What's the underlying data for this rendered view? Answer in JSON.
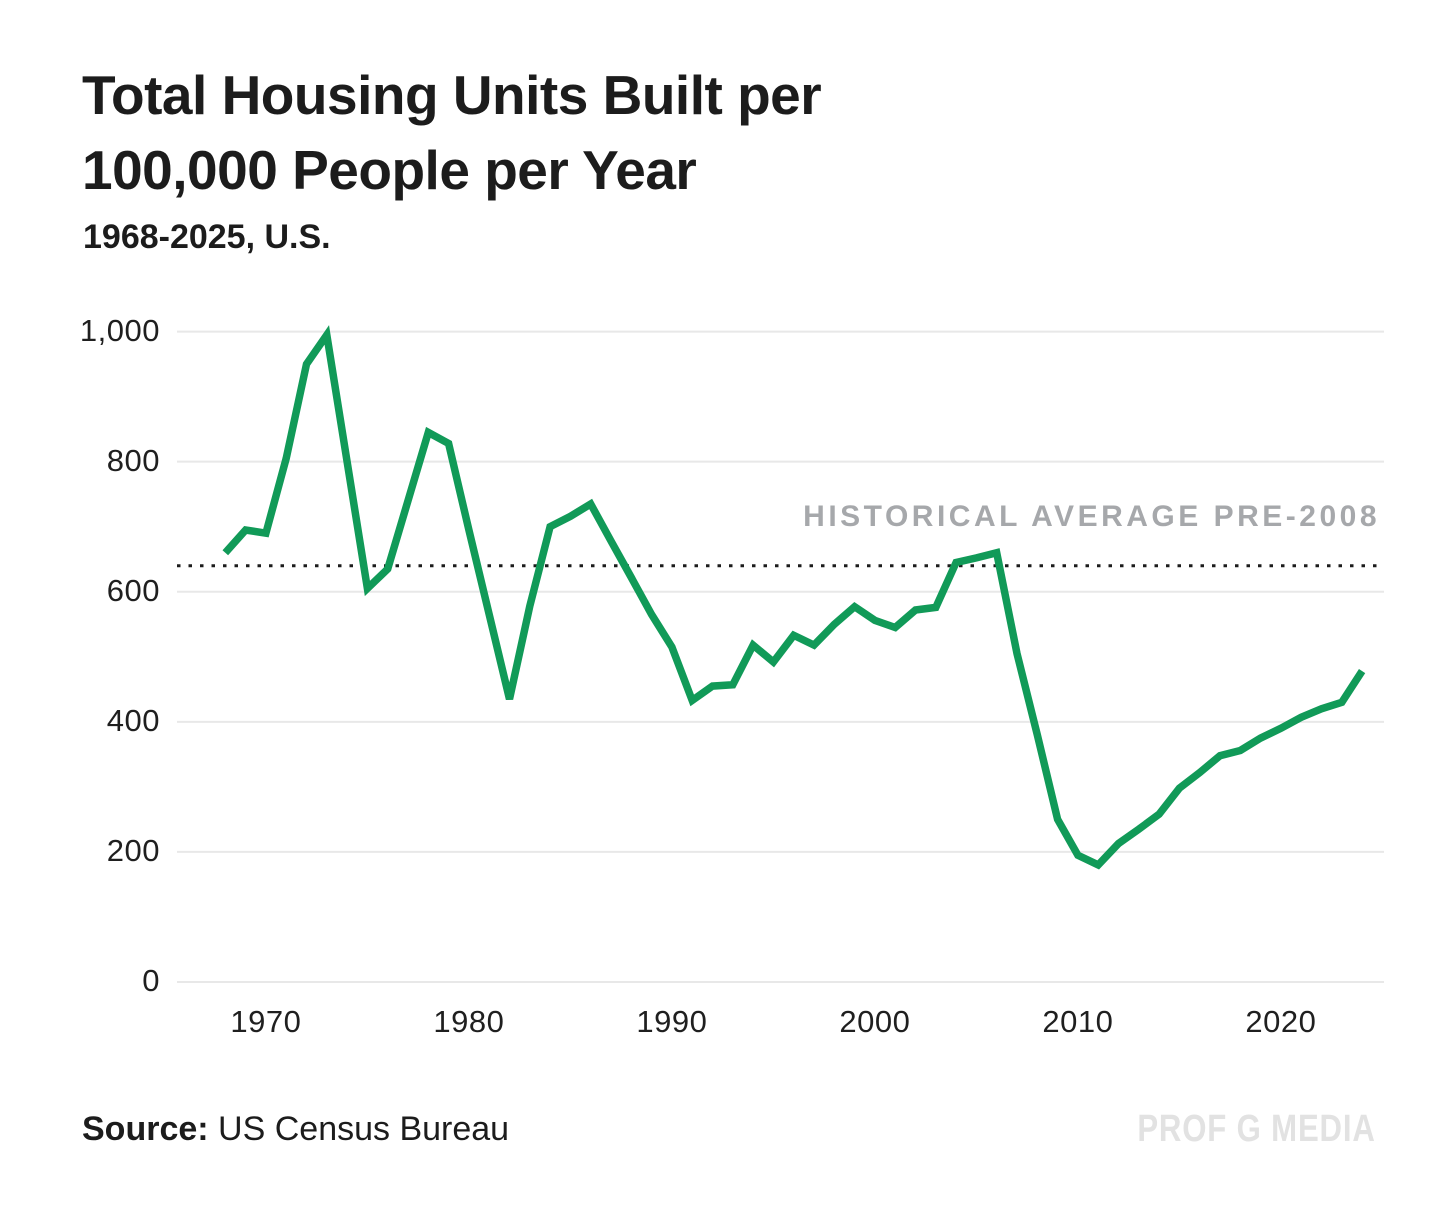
{
  "header": {
    "title_line1": "Total Housing Units Built per",
    "title_line2": "100,000 People per Year",
    "subtitle": "1968-2025, U.S."
  },
  "chart_data": {
    "type": "line",
    "title": "Total Housing Units Built per 100,000 People per Year",
    "subtitle": "1968-2025, U.S.",
    "series_name": "Total housing units built per 100,000 people per year",
    "x": [
      1968,
      1969,
      1970,
      1971,
      1972,
      1973,
      1974,
      1975,
      1976,
      1977,
      1978,
      1979,
      1980,
      1981,
      1982,
      1983,
      1984,
      1985,
      1986,
      1987,
      1988,
      1989,
      1990,
      1991,
      1992,
      1993,
      1994,
      1995,
      1996,
      1997,
      1998,
      1999,
      2000,
      2001,
      2002,
      2003,
      2004,
      2005,
      2006,
      2007,
      2008,
      2009,
      2010,
      2011,
      2012,
      2013,
      2014,
      2015,
      2016,
      2017,
      2018,
      2019,
      2020,
      2021,
      2022,
      2023,
      2024
    ],
    "y": [
      660,
      695,
      690,
      805,
      950,
      995,
      800,
      605,
      635,
      740,
      845,
      828,
      695,
      565,
      435,
      578,
      700,
      716,
      735,
      678,
      622,
      565,
      515,
      433,
      455,
      457,
      518,
      492,
      533,
      518,
      550,
      577,
      556,
      545,
      572,
      576,
      645,
      652,
      660,
      505,
      380,
      250,
      195,
      180,
      213,
      235,
      258,
      298,
      322,
      348,
      356,
      375,
      390,
      407,
      420,
      430,
      478
    ],
    "ylim": [
      0,
      1000
    ],
    "yticks": [
      0,
      200,
      400,
      600,
      800,
      1000
    ],
    "ytick_labels": [
      "0",
      "200",
      "400",
      "600",
      "800",
      "1,000"
    ],
    "xticks": [
      1970,
      1980,
      1990,
      2000,
      2010,
      2020
    ],
    "xtick_labels": [
      "1970",
      "1980",
      "1990",
      "2000",
      "2010",
      "2020"
    ],
    "grid": "horizontal",
    "grid_color": "#e8e8e8",
    "line_color": "#119a58",
    "reference_line": {
      "value": 640,
      "label": "HISTORICAL AVERAGE PRE-2008",
      "style": "dotted",
      "color": "#1c1c1c",
      "label_color": "#a6a8ab"
    }
  },
  "footer": {
    "source_label": "Source:",
    "source_value": "US Census Bureau",
    "watermark": "PROF G MEDIA"
  }
}
